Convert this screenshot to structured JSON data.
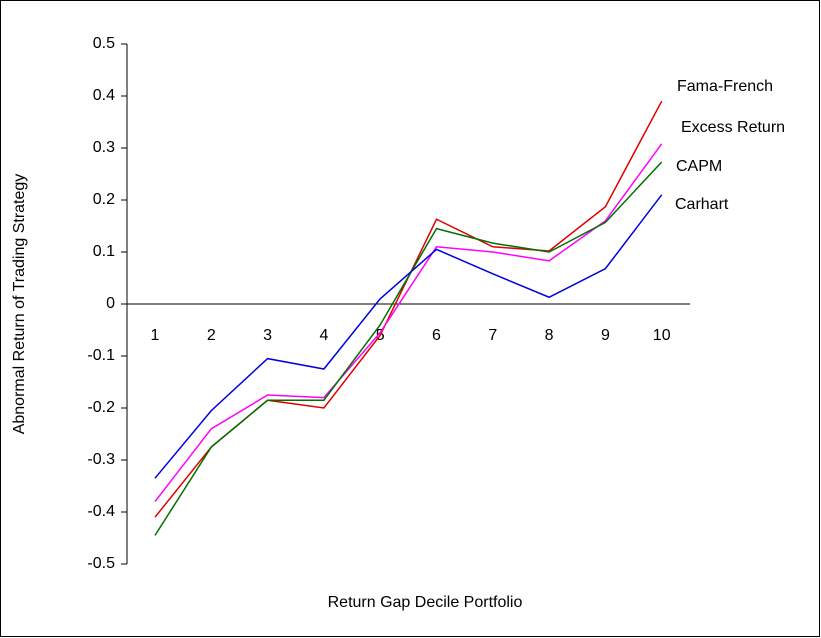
{
  "chart_data": {
    "type": "line",
    "x_label": "Return Gap Decile Portfolio",
    "y_label": "Abnormal Return of Trading Strategy",
    "categories": [
      "1",
      "2",
      "3",
      "4",
      "5",
      "6",
      "7",
      "8",
      "9",
      "10"
    ],
    "series": [
      {
        "name": "Fama-French",
        "color": "#e00000",
        "values": [
          -0.41,
          -0.275,
          -0.185,
          -0.2,
          -0.06,
          0.163,
          0.11,
          0.102,
          0.187,
          0.39
        ]
      },
      {
        "name": "Excess Return",
        "color": "#ff00ff",
        "values": [
          -0.38,
          -0.24,
          -0.175,
          -0.18,
          -0.055,
          0.11,
          0.1,
          0.083,
          0.16,
          0.308
        ]
      },
      {
        "name": "CAPM",
        "color": "#007000",
        "values": [
          -0.445,
          -0.275,
          -0.185,
          -0.185,
          -0.04,
          0.145,
          0.117,
          0.1,
          0.157,
          0.273
        ]
      },
      {
        "name": "Carhart",
        "color": "#0000e0",
        "values": [
          -0.335,
          -0.205,
          -0.105,
          -0.125,
          0.01,
          0.105,
          0.058,
          0.013,
          0.068,
          0.21
        ]
      }
    ],
    "ylim": [
      -0.5,
      0.5
    ],
    "yticks": [
      0.5,
      0.4,
      0.3,
      0.2,
      0.1,
      0,
      -0.1,
      -0.2,
      -0.3,
      -0.4,
      -0.5
    ]
  }
}
